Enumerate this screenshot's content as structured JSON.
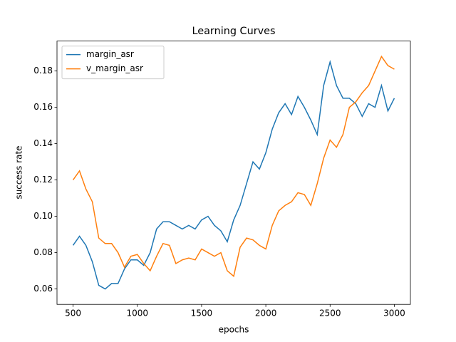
{
  "chart_data": {
    "type": "line",
    "title": "Learning Curves",
    "x_label": "epochs",
    "y_label": "success rate",
    "x": [
      500,
      550,
      600,
      650,
      700,
      750,
      800,
      850,
      900,
      950,
      1000,
      1050,
      1100,
      1150,
      1200,
      1250,
      1300,
      1350,
      1400,
      1450,
      1500,
      1550,
      1600,
      1650,
      1700,
      1750,
      1800,
      1850,
      1900,
      1950,
      2000,
      2050,
      2100,
      2150,
      2200,
      2250,
      2300,
      2350,
      2400,
      2450,
      2500,
      2550,
      2600,
      2650,
      2700,
      2750,
      2800,
      2850,
      2900,
      2950,
      3000
    ],
    "series": [
      {
        "name": "margin_asr",
        "color": "#1f77b4",
        "values": [
          0.084,
          0.089,
          0.084,
          0.075,
          0.062,
          0.06,
          0.063,
          0.063,
          0.071,
          0.076,
          0.076,
          0.073,
          0.08,
          0.093,
          0.097,
          0.097,
          0.095,
          0.093,
          0.095,
          0.093,
          0.098,
          0.1,
          0.095,
          0.092,
          0.086,
          0.098,
          0.106,
          0.118,
          0.13,
          0.126,
          0.135,
          0.148,
          0.157,
          0.162,
          0.156,
          0.166,
          0.16,
          0.153,
          0.145,
          0.172,
          0.185,
          0.172,
          0.165,
          0.165,
          0.162,
          0.155,
          0.162,
          0.16,
          0.172,
          0.158,
          0.165
        ]
      },
      {
        "name": "v_margin_asr",
        "color": "#ff7f0e",
        "values": [
          0.12,
          0.125,
          0.115,
          0.108,
          0.088,
          0.085,
          0.085,
          0.08,
          0.072,
          0.078,
          0.079,
          0.074,
          0.07,
          0.078,
          0.085,
          0.084,
          0.074,
          0.076,
          0.077,
          0.076,
          0.082,
          0.08,
          0.078,
          0.08,
          0.07,
          0.067,
          0.083,
          0.088,
          0.087,
          0.084,
          0.082,
          0.095,
          0.103,
          0.106,
          0.108,
          0.113,
          0.112,
          0.106,
          0.118,
          0.132,
          0.142,
          0.138,
          0.145,
          0.16,
          0.163,
          0.168,
          0.172,
          0.18,
          0.188,
          0.183,
          0.181
        ]
      }
    ],
    "xlim": [
      375,
      3125
    ],
    "xticks": [
      500,
      1000,
      1500,
      2000,
      2500,
      3000
    ],
    "ylim": [
      0.0515,
      0.1965
    ],
    "yticks": [
      0.06,
      0.08,
      {
        "value": 0.1,
        "label": "0.10"
      },
      0.12,
      0.14,
      0.16,
      0.18
    ],
    "legend": "upper left",
    "grid": false
  }
}
